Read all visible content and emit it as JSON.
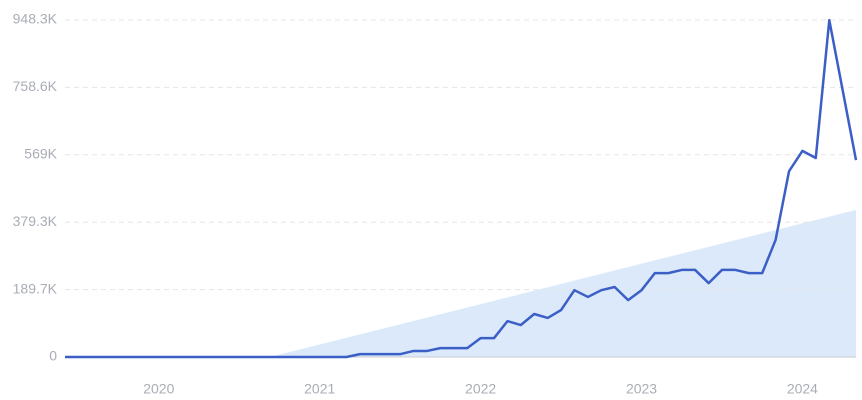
{
  "chart_data": {
    "type": "line",
    "x": [
      2019.417,
      2019.5,
      2019.583,
      2019.667,
      2019.75,
      2019.833,
      2019.917,
      2020.0,
      2020.083,
      2020.167,
      2020.25,
      2020.333,
      2020.417,
      2020.5,
      2020.583,
      2020.667,
      2020.75,
      2020.833,
      2020.917,
      2021.0,
      2021.083,
      2021.167,
      2021.25,
      2021.333,
      2021.417,
      2021.5,
      2021.583,
      2021.667,
      2021.75,
      2021.833,
      2021.917,
      2022.0,
      2022.083,
      2022.167,
      2022.25,
      2022.333,
      2022.417,
      2022.5,
      2022.583,
      2022.667,
      2022.75,
      2022.833,
      2022.917,
      2023.0,
      2023.083,
      2023.167,
      2023.25,
      2023.333,
      2023.417,
      2023.5,
      2023.583,
      2023.667,
      2023.75,
      2023.833,
      2023.917,
      2024.0,
      2024.083,
      2024.167,
      2024.25,
      2024.333
    ],
    "values": [
      0,
      0,
      0,
      0,
      0,
      0,
      0,
      0,
      0,
      0,
      0,
      0,
      0,
      0,
      0,
      0,
      0,
      0,
      0,
      0,
      0,
      0,
      8000,
      8000,
      8000,
      8000,
      17000,
      17000,
      25000,
      25000,
      25000,
      53000,
      53000,
      101000,
      90000,
      121000,
      110000,
      132000,
      188000,
      169000,
      188000,
      197000,
      160000,
      188000,
      236000,
      236000,
      245000,
      245000,
      208000,
      245000,
      245000,
      236000,
      236000,
      329000,
      523000,
      580000,
      560000,
      948000,
      751000,
      554000
    ],
    "color": "#3b5fc6",
    "trend": {
      "x": [
        2020.69,
        2024.333
      ],
      "values": [
        0,
        414000
      ],
      "color": "#dbe9fa"
    },
    "xlim": [
      2019.417,
      2024.333
    ],
    "xticks": [
      2020,
      2021,
      2022,
      2023,
      2024
    ],
    "ylim": [
      0,
      948300
    ],
    "yticks": [
      0,
      {
        "value": 189700,
        "label": "189.7K"
      },
      {
        "value": 379300,
        "label": "379.3K"
      },
      {
        "value": 569000,
        "label": "569K"
      },
      {
        "value": 758600,
        "label": "758.6K"
      },
      {
        "value": 948300,
        "label": "948.3K"
      }
    ],
    "grid": true
  }
}
